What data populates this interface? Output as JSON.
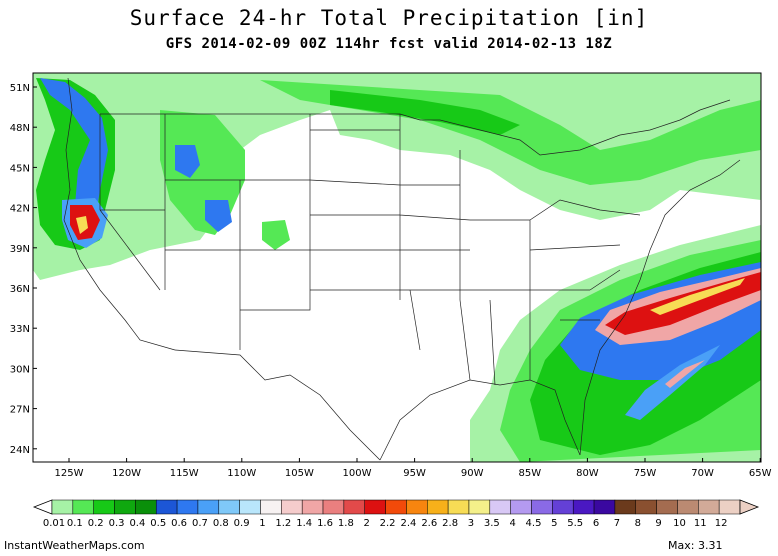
{
  "header": {
    "title": "Surface 24-hr Total Precipitation [in]",
    "subtitle": "GFS 2014-02-09 00Z 114hr fcst valid 2014-02-13 18Z"
  },
  "axes": {
    "lat_labels": [
      "51N",
      "48N",
      "45N",
      "42N",
      "39N",
      "36N",
      "33N",
      "30N",
      "27N",
      "24N"
    ],
    "lon_labels": [
      "125W",
      "120W",
      "115W",
      "110W",
      "105W",
      "100W",
      "95W",
      "90W",
      "85W",
      "80W",
      "75W",
      "70W",
      "65W"
    ]
  },
  "colorbar": {
    "labels": [
      "0.01",
      "0.1",
      "0.2",
      "0.3",
      "0.4",
      "0.5",
      "0.6",
      "0.7",
      "0.8",
      "0.9",
      "1",
      "1.2",
      "1.4",
      "1.6",
      "1.8",
      "2",
      "2.2",
      "2.4",
      "2.6",
      "2.8",
      "3",
      "3.5",
      "4",
      "4.5",
      "5",
      "5.5",
      "6",
      "7",
      "8",
      "9",
      "10",
      "11",
      "12"
    ],
    "colors": [
      "#a6f2a6",
      "#55e855",
      "#17c917",
      "#0fa80f",
      "#0a8f0a",
      "#1c56d6",
      "#2e78f0",
      "#4aa0f7",
      "#7fc8f8",
      "#b9e6fb",
      "#f7f2f2",
      "#f5cccc",
      "#f0a6a6",
      "#ea7f7f",
      "#e24a4a",
      "#dd1111",
      "#f24a0a",
      "#f7850f",
      "#f7b01a",
      "#f7dc55",
      "#f4f08a",
      "#d8c8f5",
      "#b49af0",
      "#8a6ae6",
      "#6440d6",
      "#4a18c2",
      "#3a08a0",
      "#6b3a1c",
      "#8a5030",
      "#a46c50",
      "#bb8a72",
      "#d2aa98",
      "#ecd0c4"
    ]
  },
  "footer": {
    "site": "InstantWeatherMaps.com",
    "max_label": "Max:  3.31"
  }
}
